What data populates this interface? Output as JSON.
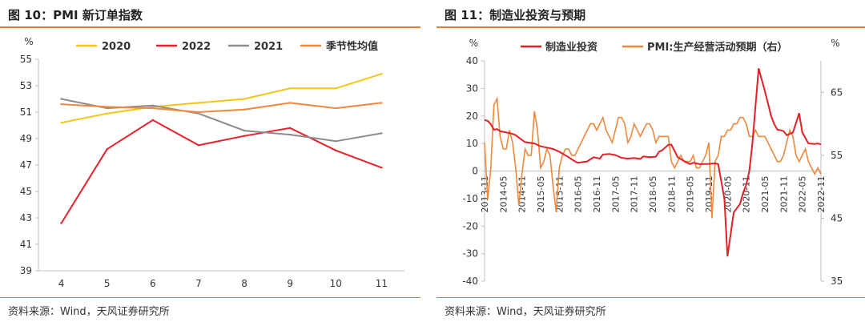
{
  "left": {
    "title": "图 10：PMI 新订单指数",
    "source": "资料来源：Wind，天风证券研究所"
  },
  "right": {
    "title": "图 11：制造业投资与预期",
    "source": "资料来源：Wind，天风证券研究所"
  },
  "colors": {
    "accent": "#e8792d",
    "y2020": "#f5c518",
    "y2022": "#e8212a",
    "y2021": "#8c8c8c",
    "seasonal": "#f0883e",
    "investment": "#e41f26",
    "pmi_expect": "#f0883e"
  },
  "chart_data": [
    {
      "type": "line",
      "ylabel": "%",
      "ylim": [
        39,
        55
      ],
      "yticks": [
        39,
        41,
        43,
        45,
        47,
        49,
        51,
        53,
        55
      ],
      "categories": [
        "4",
        "5",
        "6",
        "7",
        "8",
        "9",
        "10",
        "11"
      ],
      "legend_position": "top",
      "grid": false,
      "series": [
        {
          "name": "2020",
          "values": [
            50.2,
            50.9,
            51.4,
            51.7,
            52.0,
            52.8,
            52.8,
            53.9
          ]
        },
        {
          "name": "2022",
          "values": [
            42.6,
            48.2,
            50.4,
            48.5,
            49.2,
            49.8,
            48.1,
            46.8
          ]
        },
        {
          "name": "2021",
          "values": [
            52.0,
            51.3,
            51.5,
            50.9,
            49.6,
            49.3,
            48.8,
            49.4
          ]
        },
        {
          "name": "季节性均值",
          "values": [
            51.6,
            51.4,
            51.3,
            51.0,
            51.2,
            51.7,
            51.3,
            51.7
          ]
        }
      ]
    },
    {
      "type": "line",
      "ylabel_left": "%",
      "ylabel_right": "%",
      "ylim_left": [
        -40,
        40
      ],
      "yticks_left": [
        -40,
        -30,
        -20,
        -10,
        0,
        10,
        20,
        30,
        40
      ],
      "ylim_right": [
        35,
        70
      ],
      "yticks_right": [
        35,
        45,
        55,
        65
      ],
      "legend_position": "top",
      "grid": false,
      "x_tick_labels": [
        "2013-11",
        "2014-05",
        "2014-11",
        "2015-05",
        "2015-11",
        "2016-05",
        "2016-11",
        "2017-05",
        "2017-11",
        "2018-05",
        "2018-11",
        "2019-05",
        "2019-11",
        "2020-05",
        "2020-11",
        "2021-05",
        "2021-11",
        "2022-05",
        "2022-11"
      ],
      "series": [
        {
          "name": "制造业投资",
          "axis": "left",
          "x": [
            0,
            1,
            2,
            3,
            4,
            5,
            7,
            9,
            10,
            12,
            13,
            16,
            18,
            20,
            22,
            24,
            27,
            29,
            30,
            33,
            35,
            37,
            38,
            40,
            42,
            44,
            46,
            48,
            50,
            51,
            53,
            55,
            56,
            57,
            59,
            60,
            62,
            65,
            66,
            67,
            69,
            70,
            72,
            74,
            75,
            77,
            78,
            80,
            82,
            83,
            84,
            85,
            86,
            88,
            90,
            92,
            93,
            94,
            95,
            96,
            97,
            99,
            101,
            102,
            104,
            106,
            107,
            108
          ],
          "values": [
            18.5,
            18.2,
            17,
            15,
            15.2,
            14.5,
            14,
            13.5,
            13,
            11.3,
            10.5,
            10,
            9,
            8.5,
            8,
            7,
            5,
            3.5,
            3,
            3.5,
            5,
            4.5,
            6,
            6.2,
            5.8,
            4.8,
            4.5,
            4.7,
            4.4,
            5.3,
            5,
            5.2,
            7,
            7.5,
            9.5,
            9.6,
            5,
            3,
            2.5,
            3,
            2.5,
            2.5,
            2.6,
            2.8,
            2.5,
            -10,
            -31,
            -15,
            -12,
            -8,
            -5,
            0,
            10,
            37.3,
            29,
            20,
            17,
            15,
            14.8,
            14.5,
            13,
            14,
            21,
            14,
            10,
            9.8,
            10,
            9.7
          ]
        },
        {
          "name": "PMI:生产经营活动预期（右）",
          "axis": "right",
          "x": [
            0,
            1,
            2,
            3,
            4,
            5,
            6,
            7,
            8,
            9,
            10,
            11,
            12,
            13,
            14,
            15,
            16,
            17,
            18,
            19,
            20,
            21,
            22,
            23,
            24,
            25,
            26,
            27,
            28,
            29,
            30,
            31,
            32,
            33,
            34,
            35,
            36,
            37,
            38,
            39,
            40,
            41,
            42,
            43,
            44,
            45,
            46,
            47,
            48,
            49,
            50,
            51,
            52,
            53,
            54,
            55,
            56,
            57,
            58,
            59,
            60,
            61,
            62,
            63,
            64,
            65,
            66,
            67,
            68,
            69,
            70,
            71,
            72,
            73,
            74,
            75,
            76,
            77,
            78,
            79,
            80,
            81,
            82,
            83,
            84,
            85,
            86,
            87,
            88,
            89,
            90,
            91,
            92,
            93,
            94,
            95,
            96,
            97,
            98,
            99,
            100,
            101,
            102,
            103,
            104,
            105,
            106,
            107,
            108
          ],
          "values": [
            57,
            48,
            53,
            63,
            64,
            58,
            56,
            56,
            59,
            57,
            53,
            47,
            52,
            56,
            55,
            55,
            62,
            59,
            53,
            54,
            56,
            55,
            50,
            46,
            53,
            55,
            56,
            56,
            55,
            55,
            56,
            57,
            58,
            59,
            60,
            60,
            59,
            60,
            61,
            59,
            58,
            57,
            59,
            61,
            61,
            60,
            57,
            58,
            60,
            59,
            58,
            59,
            60,
            60,
            59,
            57,
            58,
            58,
            58,
            58,
            54,
            53,
            54,
            55,
            54,
            54,
            54,
            55,
            53,
            53,
            54,
            55,
            57,
            45,
            54,
            55,
            58,
            58,
            59,
            59,
            60,
            60,
            61,
            61,
            60,
            58,
            58,
            59,
            58,
            58,
            58,
            57,
            56,
            55,
            54,
            54,
            55,
            57,
            59,
            58,
            55,
            54,
            55,
            56,
            54,
            53,
            52,
            53,
            52
          ]
        }
      ]
    }
  ]
}
